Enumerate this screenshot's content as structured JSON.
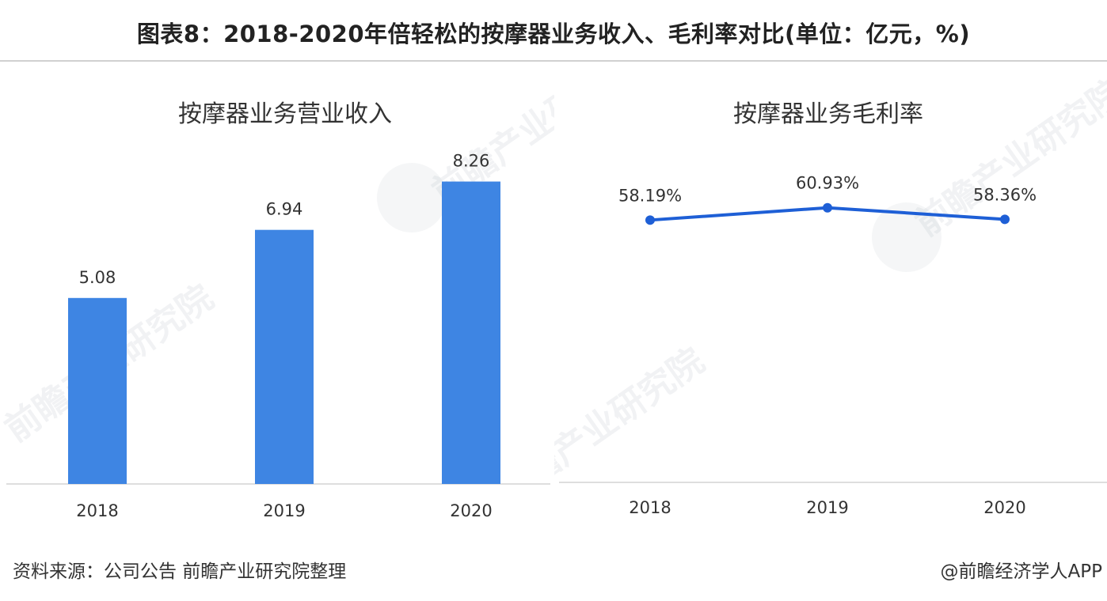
{
  "title": "图表8：2018-2020年倍轻松的按摩器业务收入、毛利率对比(单位：亿元，%)",
  "source": "资料来源：公司公告 前瞻产业研究院整理",
  "credit": "@前瞻经济学人APP",
  "watermark": "前瞻产业研究院",
  "colors": {
    "bar": "#3e85e3",
    "line": "#1e5fd6",
    "axis": "#d4d4d4"
  },
  "chart_data": [
    {
      "type": "bar",
      "title": "按摩器业务营业收入",
      "categories": [
        "2018",
        "2019",
        "2020"
      ],
      "values": [
        5.08,
        6.94,
        8.26
      ],
      "labels": [
        "5.08",
        "6.94",
        "8.26"
      ],
      "ylim": [
        0,
        10
      ],
      "grid": false,
      "legend": "none"
    },
    {
      "type": "line",
      "title": "按摩器业务毛利率",
      "categories": [
        "2018",
        "2019",
        "2020"
      ],
      "values": [
        58.19,
        60.93,
        58.36
      ],
      "labels": [
        "58.19%",
        "60.93%",
        "58.36%"
      ],
      "ylim": [
        0,
        75
      ],
      "grid": false,
      "legend": "none"
    }
  ]
}
